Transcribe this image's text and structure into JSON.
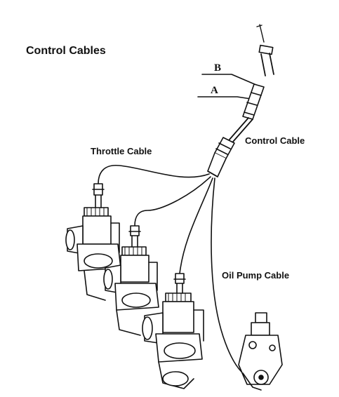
{
  "diagram": {
    "title": "Control Cables",
    "labels": {
      "b": "B",
      "a": "A",
      "control_cable": "Control Cable",
      "throttle_cable": "Throttle Cable",
      "oil_pump_cable": "Oil Pump Cable"
    },
    "carburetor_count": 3,
    "line_color": "#111111"
  }
}
